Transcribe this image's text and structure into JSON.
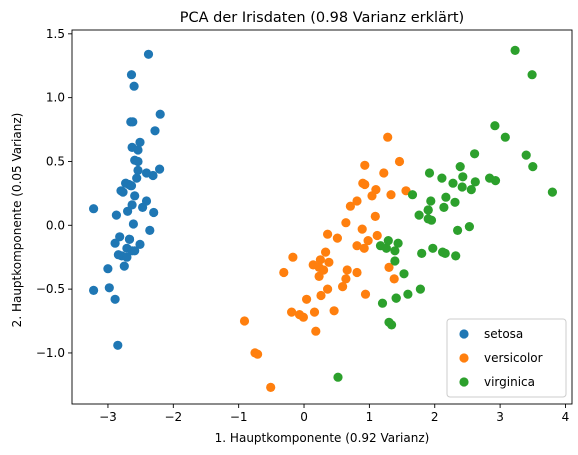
{
  "chart_data": {
    "type": "scatter",
    "title": "PCA der Irisdaten (0.98 Varianz erklärt)",
    "xlabel": "1. Hauptkomponente (0.92 Varianz)",
    "ylabel": "2. Hauptkomponente (0.05 Varianz)",
    "xlim": [
      -3.55,
      4.1
    ],
    "ylim": [
      -1.4,
      1.53
    ],
    "xticks": [
      -3,
      -2,
      -1,
      0,
      1,
      2,
      3,
      4
    ],
    "yticks": [
      -1.0,
      -0.5,
      0.0,
      0.5,
      1.0,
      1.5
    ],
    "xtick_labels": [
      "−3",
      "−2",
      "−1",
      "0",
      "1",
      "2",
      "3",
      "4"
    ],
    "ytick_labels": [
      "−1.0",
      "−0.5",
      "0.0",
      "0.5",
      "1.0",
      "1.5"
    ],
    "grid": false,
    "legend_position": "lower-right",
    "series": [
      {
        "name": "setosa",
        "color": "#1f77b4",
        "points": [
          [
            -2.68,
            0.32
          ],
          [
            -2.71,
            -0.18
          ],
          [
            -2.89,
            -0.14
          ],
          [
            -2.75,
            -0.32
          ],
          [
            -2.73,
            0.33
          ],
          [
            -2.28,
            0.74
          ],
          [
            -2.82,
            -0.09
          ],
          [
            -2.63,
            0.16
          ],
          [
            -2.89,
            -0.58
          ],
          [
            -2.67,
            -0.11
          ],
          [
            -2.51,
            0.65
          ],
          [
            -2.61,
            0.01
          ],
          [
            -2.79,
            -0.24
          ],
          [
            -3.22,
            -0.51
          ],
          [
            -2.64,
            1.18
          ],
          [
            -2.38,
            1.34
          ],
          [
            -2.62,
            0.81
          ],
          [
            -2.65,
            0.31
          ],
          [
            -2.2,
            0.87
          ],
          [
            -2.59,
            0.51
          ],
          [
            -2.31,
            0.39
          ],
          [
            -2.54,
            0.43
          ],
          [
            -3.22,
            0.13
          ],
          [
            -2.3,
            0.1
          ],
          [
            -2.36,
            -0.04
          ],
          [
            -2.51,
            -0.15
          ],
          [
            -2.47,
            0.14
          ],
          [
            -2.56,
            0.37
          ],
          [
            -2.64,
            0.31
          ],
          [
            -2.63,
            -0.2
          ],
          [
            -2.59,
            -0.2
          ],
          [
            -2.41,
            0.41
          ],
          [
            -2.65,
            0.81
          ],
          [
            -2.6,
            1.09
          ],
          [
            -2.67,
            -0.11
          ],
          [
            -2.87,
            0.08
          ],
          [
            -2.63,
            0.61
          ],
          [
            -2.8,
            0.27
          ],
          [
            -2.98,
            -0.49
          ],
          [
            -2.59,
            0.23
          ],
          [
            -2.77,
            0.26
          ],
          [
            -2.85,
            -0.94
          ],
          [
            -3.0,
            -0.34
          ],
          [
            -2.41,
            0.19
          ],
          [
            -2.21,
            0.44
          ],
          [
            -2.71,
            -0.25
          ],
          [
            -2.54,
            0.5
          ],
          [
            -2.84,
            -0.23
          ],
          [
            -2.54,
            0.59
          ],
          [
            -2.7,
            0.11
          ]
        ]
      },
      {
        "name": "versicolor",
        "color": "#ff7f0e",
        "points": [
          [
            1.28,
            0.69
          ],
          [
            0.93,
            0.32
          ],
          [
            1.46,
            0.5
          ],
          [
            0.18,
            -0.83
          ],
          [
            1.09,
            0.07
          ],
          [
            0.64,
            -0.42
          ],
          [
            1.1,
            0.28
          ],
          [
            -0.75,
            -1.0
          ],
          [
            1.04,
            0.23
          ],
          [
            -0.01,
            -0.72
          ],
          [
            -0.51,
            -1.27
          ],
          [
            0.51,
            -0.1
          ],
          [
            0.26,
            -0.55
          ],
          [
            0.98,
            -0.12
          ],
          [
            -0.17,
            -0.25
          ],
          [
            0.93,
            0.47
          ],
          [
            0.66,
            -0.35
          ],
          [
            0.23,
            -0.33
          ],
          [
            0.94,
            -0.54
          ],
          [
            0.04,
            -0.58
          ],
          [
            1.12,
            -0.08
          ],
          [
            0.36,
            -0.07
          ],
          [
            1.3,
            -0.33
          ],
          [
            0.92,
            -0.18
          ],
          [
            0.71,
            0.15
          ],
          [
            0.9,
            0.33
          ],
          [
            1.33,
            0.24
          ],
          [
            1.56,
            0.27
          ],
          [
            0.81,
            -0.16
          ],
          [
            -0.31,
            -0.37
          ],
          [
            -0.07,
            -0.7
          ],
          [
            -0.19,
            -0.68
          ],
          [
            0.14,
            -0.31
          ],
          [
            1.38,
            -0.42
          ],
          [
            0.59,
            -0.48
          ],
          [
            0.81,
            0.19
          ],
          [
            1.22,
            0.41
          ],
          [
            0.81,
            -0.37
          ],
          [
            0.25,
            -0.27
          ],
          [
            0.16,
            -0.68
          ],
          [
            0.46,
            -0.67
          ],
          [
            0.89,
            -0.03
          ],
          [
            0.23,
            -0.4
          ],
          [
            -0.71,
            -1.01
          ],
          [
            0.36,
            -0.5
          ],
          [
            0.33,
            -0.21
          ],
          [
            0.38,
            -0.29
          ],
          [
            0.64,
            0.02
          ],
          [
            -0.91,
            -0.75
          ],
          [
            0.3,
            -0.35
          ]
        ]
      },
      {
        "name": "virginica",
        "color": "#2ca02c",
        "points": [
          [
            2.53,
            -0.01
          ],
          [
            1.41,
            -0.57
          ],
          [
            2.62,
            0.34
          ],
          [
            1.97,
            -0.18
          ],
          [
            2.35,
            -0.04
          ],
          [
            3.4,
            0.55
          ],
          [
            0.52,
            -1.19
          ],
          [
            2.93,
            0.35
          ],
          [
            2.32,
            -0.24
          ],
          [
            2.92,
            0.78
          ],
          [
            1.66,
            0.24
          ],
          [
            1.8,
            -0.22
          ],
          [
            2.17,
            0.22
          ],
          [
            1.34,
            -0.78
          ],
          [
            1.59,
            -0.54
          ],
          [
            1.9,
            0.12
          ],
          [
            1.95,
            0.04
          ],
          [
            3.49,
            1.18
          ],
          [
            3.8,
            0.26
          ],
          [
            1.3,
            -0.76
          ],
          [
            2.43,
            0.38
          ],
          [
            1.2,
            -0.61
          ],
          [
            3.5,
            0.46
          ],
          [
            1.39,
            -0.2
          ],
          [
            2.28,
            0.33
          ],
          [
            2.61,
            0.56
          ],
          [
            1.26,
            -0.18
          ],
          [
            1.29,
            -0.12
          ],
          [
            2.12,
            -0.21
          ],
          [
            2.39,
            0.46
          ],
          [
            2.84,
            0.37
          ],
          [
            3.23,
            1.37
          ],
          [
            2.16,
            -0.22
          ],
          [
            1.44,
            -0.14
          ],
          [
            1.78,
            -0.5
          ],
          [
            3.08,
            0.69
          ],
          [
            2.14,
            0.14
          ],
          [
            1.9,
            0.05
          ],
          [
            1.17,
            -0.16
          ],
          [
            2.11,
            0.37
          ],
          [
            2.31,
            0.18
          ],
          [
            1.92,
            0.41
          ],
          [
            1.41,
            -0.57
          ],
          [
            2.56,
            0.28
          ],
          [
            2.42,
            0.3
          ],
          [
            1.94,
            0.19
          ],
          [
            1.53,
            -0.38
          ],
          [
            1.76,
            0.08
          ],
          [
            1.9,
            0.12
          ],
          [
            1.39,
            -0.28
          ]
        ]
      }
    ]
  }
}
